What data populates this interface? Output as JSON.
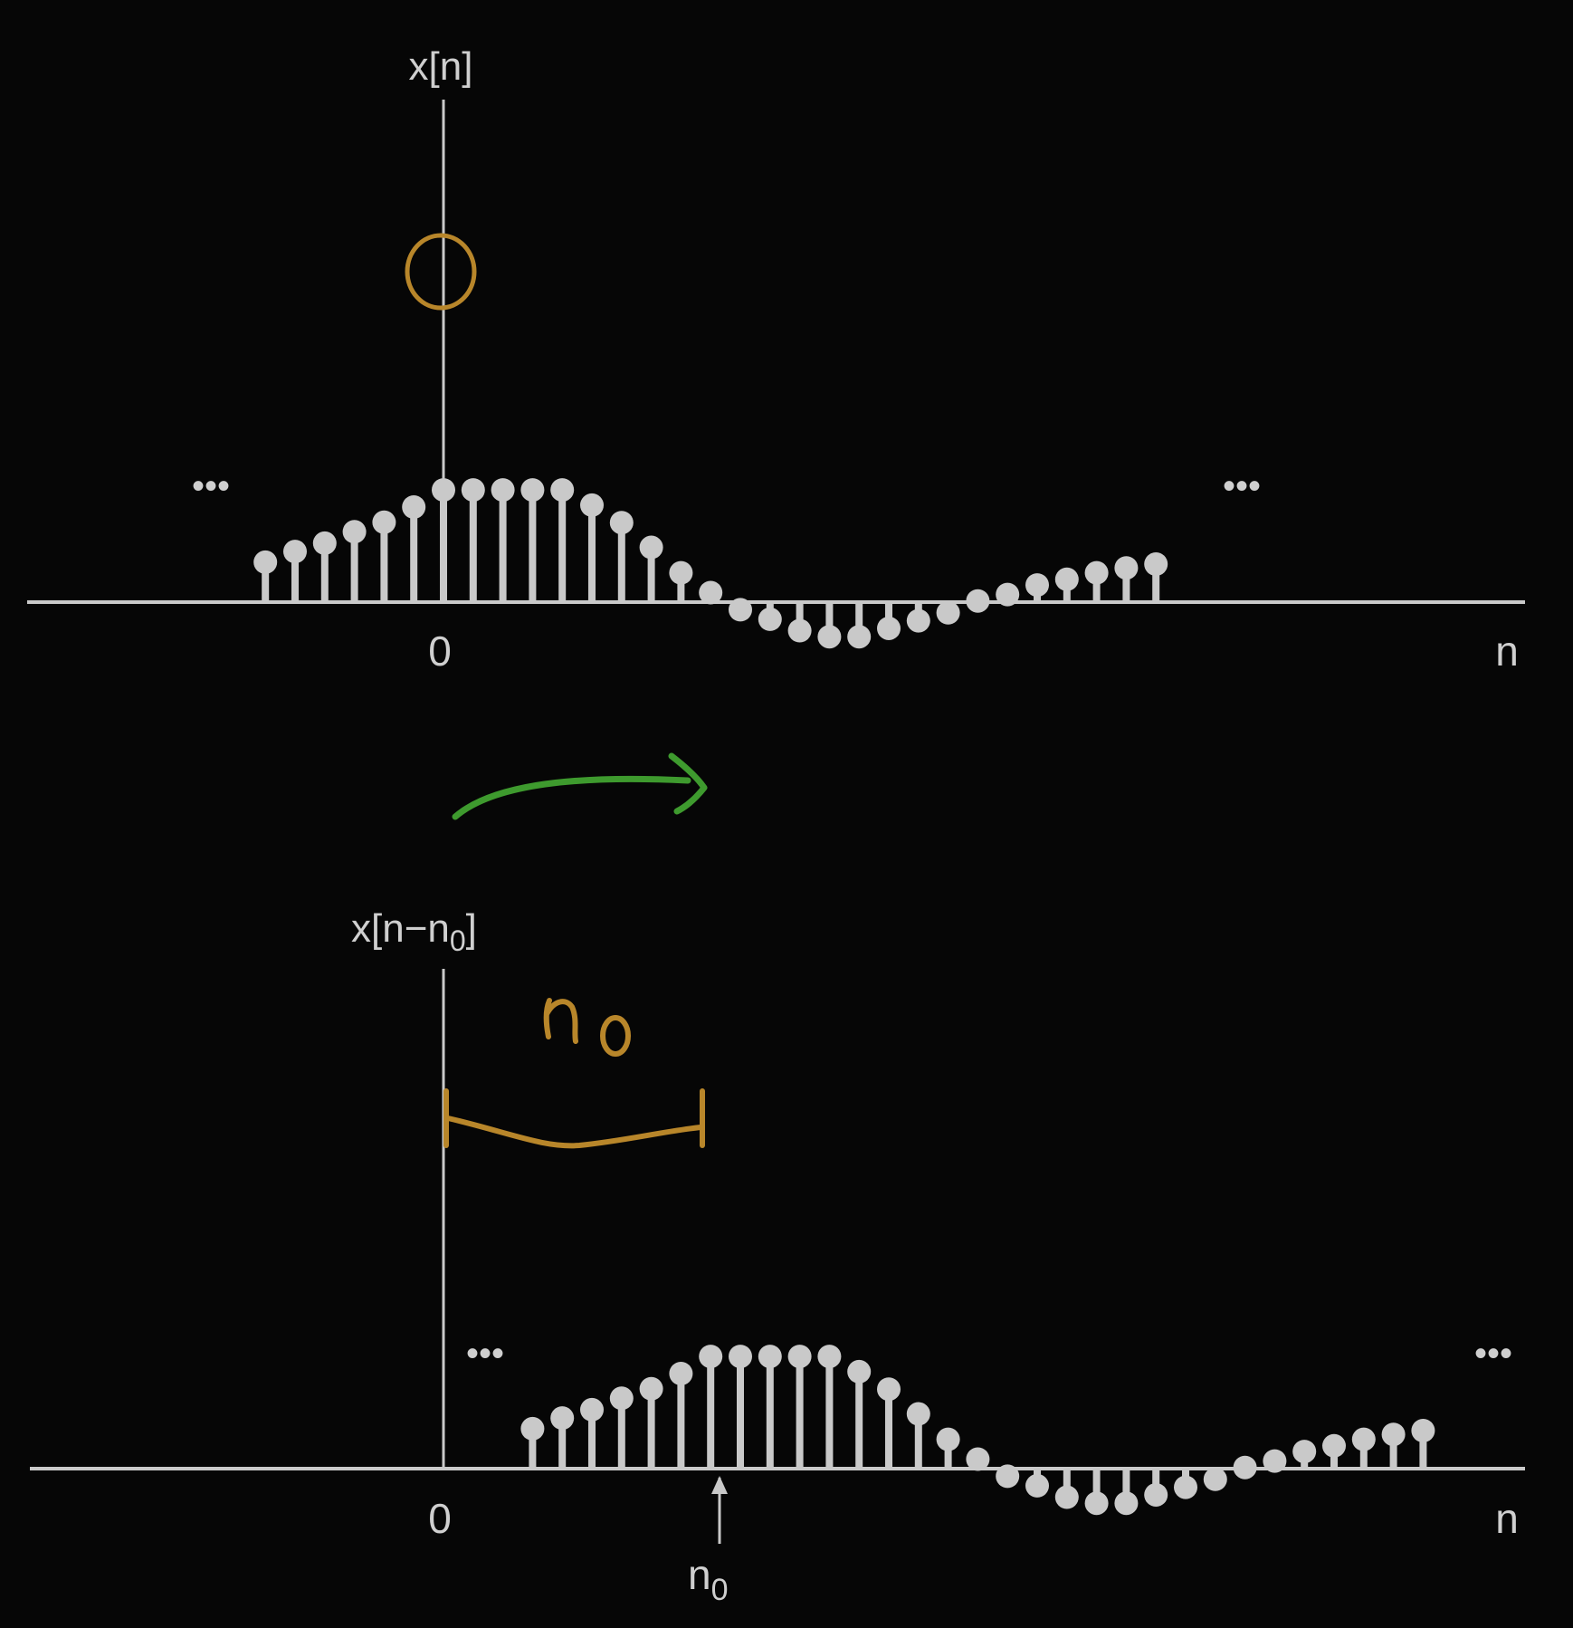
{
  "colors": {
    "background": "#060606",
    "stem": "#c9c9c9",
    "annotation_orange": "#b8862a",
    "annotation_green": "#3e9a2e"
  },
  "chart_data": [
    {
      "type": "stem",
      "ylabel": "x[n]",
      "xlabel": "n",
      "zero_label": "0",
      "ellipsis_left": "•••",
      "ellipsis_right": "•••",
      "n": [
        -6,
        -5,
        -4,
        -3,
        -2,
        -1,
        0,
        1,
        2,
        3,
        4,
        5,
        6,
        7,
        8,
        9,
        10,
        11,
        12,
        13,
        14,
        15,
        16,
        17,
        18,
        19,
        20,
        21,
        22,
        23,
        24
      ],
      "values": [
        1.05,
        1.33,
        1.55,
        1.85,
        2.1,
        2.5,
        2.95,
        2.95,
        2.95,
        2.95,
        2.95,
        2.55,
        2.09,
        1.44,
        0.77,
        0.25,
        -0.2,
        -0.45,
        -0.75,
        -0.91,
        -0.91,
        -0.69,
        -0.49,
        -0.28,
        0.03,
        0.2,
        0.45,
        0.6,
        0.77,
        0.9,
        1.0
      ],
      "ylim": [
        -1.3,
        4.45
      ],
      "annotation": "circle at n=0"
    },
    {
      "type": "stem",
      "ylabel_main": "x[n−n",
      "ylabel_sub": "0",
      "ylabel_close": "]",
      "xlabel": "n",
      "zero_label": "0",
      "shift_label_main": "n",
      "shift_label_sub": "0",
      "handwritten_label": "n₀",
      "ellipsis_left": "•••",
      "ellipsis_right": "•••",
      "shift": 9,
      "n": [
        3,
        4,
        5,
        6,
        7,
        8,
        9,
        10,
        11,
        12,
        13,
        14,
        15,
        16,
        17,
        18,
        19,
        20,
        21,
        22,
        23,
        24,
        25,
        26,
        27,
        28,
        29,
        30,
        31,
        32,
        33
      ],
      "values": [
        1.05,
        1.33,
        1.55,
        1.85,
        2.1,
        2.5,
        2.95,
        2.95,
        2.95,
        2.95,
        2.95,
        2.55,
        2.09,
        1.44,
        0.77,
        0.25,
        -0.2,
        -0.45,
        -0.75,
        -0.91,
        -0.91,
        -0.69,
        -0.49,
        -0.28,
        0.03,
        0.2,
        0.45,
        0.6,
        0.77,
        0.9,
        1.0
      ],
      "ylim": [
        -1.3,
        4.45
      ]
    }
  ]
}
